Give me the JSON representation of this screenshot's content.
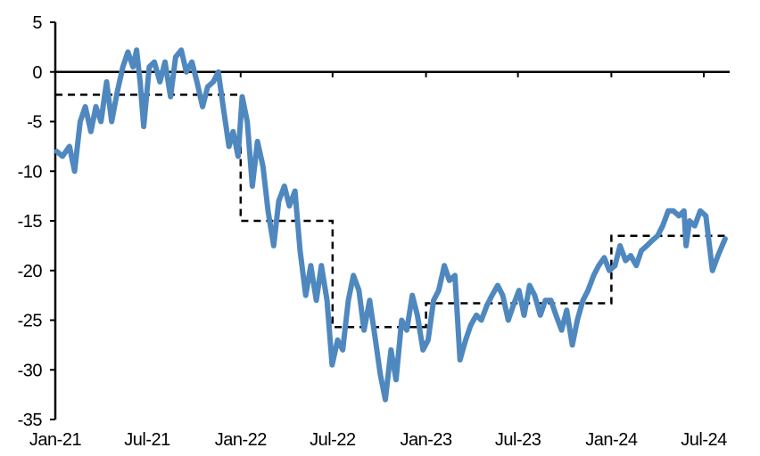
{
  "chart_data": {
    "type": "line",
    "title": "",
    "xlabel": "",
    "ylabel": "",
    "ylim": [
      -35,
      5
    ],
    "yticks": [
      5,
      0,
      -5,
      -10,
      -15,
      -20,
      -25,
      -30,
      -35
    ],
    "xticks": [
      {
        "date": "2021-01-01",
        "label": "Jan-21"
      },
      {
        "date": "2021-07-01",
        "label": "Jul-21"
      },
      {
        "date": "2022-01-01",
        "label": "Jan-22"
      },
      {
        "date": "2022-07-01",
        "label": "Jul-22"
      },
      {
        "date": "2023-01-01",
        "label": "Jan-23"
      },
      {
        "date": "2023-07-01",
        "label": "Jul-23"
      },
      {
        "date": "2024-01-01",
        "label": "Jan-24"
      },
      {
        "date": "2024-07-01",
        "label": "Jul-24"
      }
    ],
    "grid": false,
    "legend": "none",
    "series": [
      {
        "style": "solid",
        "color": "#4f88bf",
        "points": [
          [
            "2021-01-04",
            -8
          ],
          [
            "2021-01-15",
            -8.5
          ],
          [
            "2021-01-29",
            -7.5
          ],
          [
            "2021-02-08",
            -10
          ],
          [
            "2021-02-19",
            -5
          ],
          [
            "2021-03-01",
            -3.5
          ],
          [
            "2021-03-12",
            -6
          ],
          [
            "2021-03-22",
            -3.5
          ],
          [
            "2021-04-01",
            -5
          ],
          [
            "2021-04-12",
            -1
          ],
          [
            "2021-04-22",
            -5
          ],
          [
            "2021-05-03",
            -2
          ],
          [
            "2021-05-14",
            0.5
          ],
          [
            "2021-05-24",
            2
          ],
          [
            "2021-06-03",
            0.5
          ],
          [
            "2021-06-10",
            2.2
          ],
          [
            "2021-06-17",
            -1
          ],
          [
            "2021-06-24",
            -5.5
          ],
          [
            "2021-07-05",
            0.5
          ],
          [
            "2021-07-15",
            1
          ],
          [
            "2021-07-26",
            -1
          ],
          [
            "2021-08-05",
            1
          ],
          [
            "2021-08-16",
            -2.5
          ],
          [
            "2021-08-26",
            1.5
          ],
          [
            "2021-09-06",
            2.2
          ],
          [
            "2021-09-16",
            0
          ],
          [
            "2021-09-27",
            1
          ],
          [
            "2021-10-07",
            -1
          ],
          [
            "2021-10-18",
            -3.5
          ],
          [
            "2021-10-28",
            -1.5
          ],
          [
            "2021-11-08",
            -1
          ],
          [
            "2021-11-18",
            0
          ],
          [
            "2021-11-29",
            -4
          ],
          [
            "2021-12-09",
            -7.5
          ],
          [
            "2021-12-17",
            -6
          ],
          [
            "2021-12-27",
            -8.5
          ],
          [
            "2022-01-04",
            -2.5
          ],
          [
            "2022-01-14",
            -5
          ],
          [
            "2022-01-24",
            -11.5
          ],
          [
            "2022-02-03",
            -7
          ],
          [
            "2022-02-14",
            -9.5
          ],
          [
            "2022-02-24",
            -14
          ],
          [
            "2022-03-07",
            -17.5
          ],
          [
            "2022-03-17",
            -13
          ],
          [
            "2022-03-28",
            -11.5
          ],
          [
            "2022-04-07",
            -13.5
          ],
          [
            "2022-04-18",
            -12
          ],
          [
            "2022-04-28",
            -18
          ],
          [
            "2022-05-09",
            -22.5
          ],
          [
            "2022-05-19",
            -19.5
          ],
          [
            "2022-05-30",
            -23
          ],
          [
            "2022-06-09",
            -19.5
          ],
          [
            "2022-06-20",
            -23
          ],
          [
            "2022-06-30",
            -29.5
          ],
          [
            "2022-07-11",
            -27
          ],
          [
            "2022-07-21",
            -28
          ],
          [
            "2022-08-01",
            -23
          ],
          [
            "2022-08-11",
            -20.5
          ],
          [
            "2022-08-22",
            -22
          ],
          [
            "2022-09-01",
            -26
          ],
          [
            "2022-09-12",
            -23
          ],
          [
            "2022-09-22",
            -26.5
          ],
          [
            "2022-10-03",
            -30.5
          ],
          [
            "2022-10-13",
            -33
          ],
          [
            "2022-10-24",
            -28
          ],
          [
            "2022-11-03",
            -31
          ],
          [
            "2022-11-14",
            -25
          ],
          [
            "2022-11-24",
            -26
          ],
          [
            "2022-12-05",
            -22.5
          ],
          [
            "2022-12-15",
            -24.5
          ],
          [
            "2022-12-26",
            -28
          ],
          [
            "2023-01-05",
            -27
          ],
          [
            "2023-01-16",
            -23
          ],
          [
            "2023-01-26",
            -22
          ],
          [
            "2023-02-06",
            -19.5
          ],
          [
            "2023-02-16",
            -21
          ],
          [
            "2023-02-27",
            -20.5
          ],
          [
            "2023-03-09",
            -29
          ],
          [
            "2023-03-20",
            -27
          ],
          [
            "2023-03-30",
            -25.5
          ],
          [
            "2023-04-10",
            -24.5
          ],
          [
            "2023-04-20",
            -25
          ],
          [
            "2023-05-01",
            -23.5
          ],
          [
            "2023-05-11",
            -22.5
          ],
          [
            "2023-05-22",
            -21.5
          ],
          [
            "2023-06-01",
            -22.5
          ],
          [
            "2023-06-12",
            -25
          ],
          [
            "2023-06-22",
            -23.5
          ],
          [
            "2023-07-03",
            -22
          ],
          [
            "2023-07-13",
            -24.5
          ],
          [
            "2023-07-24",
            -21.5
          ],
          [
            "2023-08-03",
            -22.5
          ],
          [
            "2023-08-14",
            -24.5
          ],
          [
            "2023-08-24",
            -23
          ],
          [
            "2023-09-04",
            -23
          ],
          [
            "2023-09-14",
            -24.5
          ],
          [
            "2023-09-25",
            -26
          ],
          [
            "2023-10-05",
            -24
          ],
          [
            "2023-10-16",
            -27.5
          ],
          [
            "2023-10-26",
            -25
          ],
          [
            "2023-11-06",
            -23
          ],
          [
            "2023-11-16",
            -22
          ],
          [
            "2023-11-27",
            -20.5
          ],
          [
            "2023-12-07",
            -19.5
          ],
          [
            "2023-12-18",
            -18.7
          ],
          [
            "2023-12-28",
            -20
          ],
          [
            "2024-01-08",
            -19.5
          ],
          [
            "2024-01-18",
            -17.5
          ],
          [
            "2024-01-29",
            -19
          ],
          [
            "2024-02-08",
            -18.5
          ],
          [
            "2024-02-19",
            -19.5
          ],
          [
            "2024-02-29",
            -18
          ],
          [
            "2024-03-11",
            -17.5
          ],
          [
            "2024-03-21",
            -17
          ],
          [
            "2024-04-01",
            -16.5
          ],
          [
            "2024-04-11",
            -15.5
          ],
          [
            "2024-04-22",
            -14
          ],
          [
            "2024-05-02",
            -14
          ],
          [
            "2024-05-13",
            -14.5
          ],
          [
            "2024-05-23",
            -14
          ],
          [
            "2024-05-27",
            -17.5
          ],
          [
            "2024-06-03",
            -15
          ],
          [
            "2024-06-13",
            -15.5
          ],
          [
            "2024-06-24",
            -14
          ],
          [
            "2024-07-05",
            -14.5
          ],
          [
            "2024-07-18",
            -20
          ],
          [
            "2024-07-29",
            -18.5
          ],
          [
            "2024-08-12",
            -16.8
          ]
        ]
      },
      {
        "style": "dashed",
        "color": "#000000",
        "steps": [
          {
            "from": "2021-01-01",
            "to": "2022-01-01",
            "value": -2.3
          },
          {
            "from": "2022-01-01",
            "to": "2022-07-01",
            "value": -15
          },
          {
            "from": "2022-07-01",
            "to": "2023-01-01",
            "value": -25.7
          },
          {
            "from": "2023-01-01",
            "to": "2024-01-01",
            "value": -23.3
          },
          {
            "from": "2024-01-01",
            "to": "2024-08-12",
            "value": -16.5
          }
        ]
      }
    ]
  }
}
